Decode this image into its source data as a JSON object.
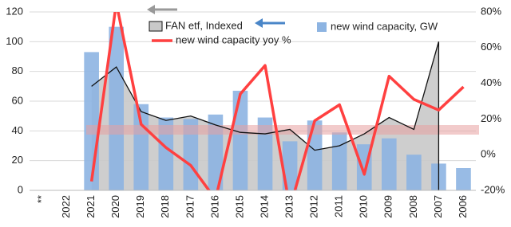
{
  "chart_data": {
    "type": "combo",
    "categories": [
      "**",
      "2022",
      "2021",
      "2020",
      "2019",
      "2018",
      "2017",
      "2016",
      "2015",
      "2014",
      "2013",
      "2012",
      "2011",
      "2010",
      "2009",
      "2008",
      "2007",
      "2006"
    ],
    "series": [
      {
        "name": "FAN etf, Indexed",
        "type": "area",
        "color": "#c9c9c9",
        "line_color": "#111111",
        "values": [
          null,
          null,
          70,
          83,
          53,
          47,
          50,
          44,
          39,
          38,
          41,
          27,
          30,
          38,
          49,
          41,
          100,
          null
        ]
      },
      {
        "name": "new wind capacity, GW",
        "type": "bar",
        "color": "#8db4e2",
        "values": [
          null,
          null,
          93,
          110,
          58,
          49,
          48,
          51,
          67,
          49,
          33,
          47,
          39,
          31,
          35,
          24,
          18,
          15
        ]
      },
      {
        "name": "new wind capacity yoy %",
        "type": "line",
        "color": "#ff4040",
        "axis": "y2",
        "values": [
          null,
          null,
          -15,
          85,
          17,
          4,
          -6,
          -25,
          34,
          50,
          -30,
          19,
          28,
          -11,
          44,
          31,
          25,
          38
        ]
      }
    ],
    "ylim": [
      0,
      120
    ],
    "yticks": [
      0,
      20,
      40,
      60,
      80,
      100,
      120
    ],
    "y2lim": [
      -20,
      80
    ],
    "y2ticks": [
      {
        "value": -20,
        "label": "-20%"
      },
      {
        "value": 0,
        "label": "0%"
      },
      {
        "value": 20,
        "label": "20%"
      },
      {
        "value": 40,
        "label": "40%"
      },
      {
        "value": 60,
        "label": "60%"
      },
      {
        "value": 80,
        "label": "80%"
      }
    ],
    "grid": true
  }
}
